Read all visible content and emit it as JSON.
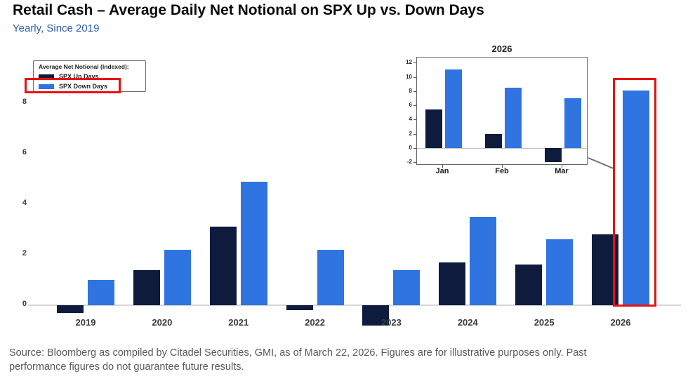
{
  "header": {
    "title": "Retail Cash – Average Daily Net Notional on SPX Up vs. Down Days",
    "subtitle": "Yearly, Since 2019"
  },
  "legend": {
    "title": "Average Net Notional (Indexed):",
    "items": [
      {
        "label": "SPX Up Days",
        "color": "#0e1b3d"
      },
      {
        "label": "SPX Down Days",
        "color": "#2f74e0"
      }
    ]
  },
  "chart_data": [
    {
      "id": "main-yearly",
      "type": "bar",
      "title": "Retail Cash – Average Daily Net Notional on SPX Up vs. Down Days",
      "subtitle": "Yearly, Since 2019",
      "categories": [
        "2019",
        "2020",
        "2021",
        "2022",
        "2023",
        "2024",
        "2025",
        "2026"
      ],
      "series": [
        {
          "name": "SPX Up Days",
          "color": "#0e1b3d",
          "values": [
            -0.3,
            1.4,
            3.1,
            -0.2,
            -0.8,
            1.7,
            1.6,
            2.8
          ]
        },
        {
          "name": "SPX Down Days",
          "color": "#2f74e0",
          "values": [
            1.0,
            2.2,
            4.9,
            2.2,
            1.4,
            3.5,
            2.6,
            8.5
          ]
        }
      ],
      "ylabel": "Average Net Notional (Indexed)",
      "yticks": [
        0,
        2,
        4,
        6,
        8
      ],
      "ylim": [
        -1,
        9
      ],
      "grid": false,
      "legend_position": "top-left",
      "annotations": [
        "red box highlighting SPX Down Days legend entry",
        "red box highlighting 2026 SPX Down Days bar"
      ]
    },
    {
      "id": "inset-2026-monthly",
      "type": "bar",
      "title": "2026",
      "categories": [
        "Jan",
        "Feb",
        "Mar"
      ],
      "series": [
        {
          "name": "SPX Up Days",
          "color": "#0e1b3d",
          "values": [
            5.4,
            2.0,
            -2.0
          ]
        },
        {
          "name": "SPX Down Days",
          "color": "#2f74e0",
          "values": [
            11.0,
            8.5,
            7.0
          ]
        }
      ],
      "yticks": [
        -2,
        0,
        2,
        4,
        6,
        8,
        10,
        12
      ],
      "ylim": [
        -2.6,
        12.6
      ],
      "grid": false,
      "callout": "line pointing to 2026 SPX Down Days bar in main chart"
    }
  ],
  "footer": {
    "lines": [
      "Source: Bloomberg as compiled by Citadel Securities, GMI, as of March 22, 2026. Figures are for illustrative purposes only. Past",
      "performance figures do not guarantee future results."
    ]
  },
  "colors": {
    "up": "#0e1b3d",
    "down": "#2f74e0",
    "highlight": "#e61212",
    "subtitle_blue": "#2a5da9",
    "axis_line": "#d6d6d6"
  }
}
